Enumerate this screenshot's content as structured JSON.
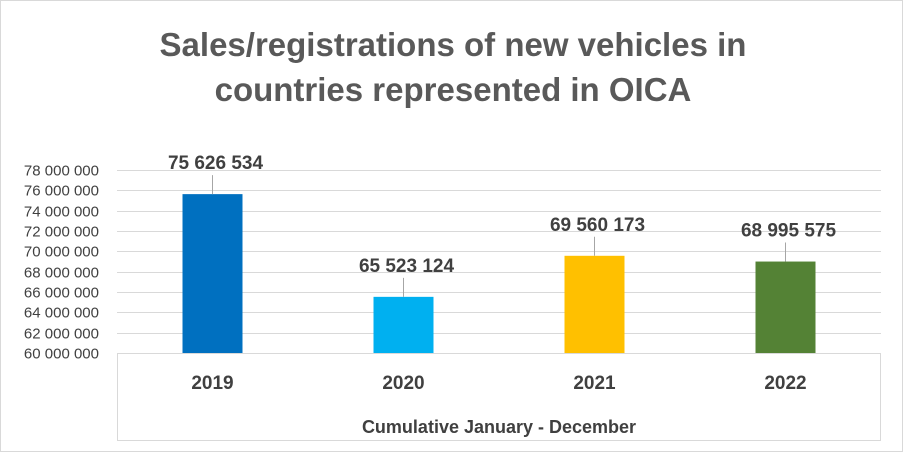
{
  "chart_data": {
    "type": "bar",
    "title_lines": [
      "Sales/registrations of new vehicles in",
      "countries represented in OICA"
    ],
    "categories": [
      "2019",
      "2020",
      "2021",
      "2022"
    ],
    "values": [
      75626534,
      65523124,
      69560173,
      68995575
    ],
    "value_labels": [
      "75 626 534",
      "65 523 124",
      "69 560 173",
      "68 995 575"
    ],
    "colors": [
      "#0070c0",
      "#00b0f0",
      "#ffc000",
      "#548235"
    ],
    "ylim": [
      60000000,
      78000000
    ],
    "yticks": [
      60000000,
      62000000,
      64000000,
      66000000,
      68000000,
      70000000,
      72000000,
      74000000,
      76000000,
      78000000
    ],
    "ytick_labels": [
      "60 000 000",
      "62 000 000",
      "64 000 000",
      "66 000 000",
      "68 000 000",
      "70 000 000",
      "72 000 000",
      "74 000 000",
      "76 000 000",
      "78 000 000"
    ],
    "xlabel": "Cumulative January - December",
    "grid": true
  }
}
